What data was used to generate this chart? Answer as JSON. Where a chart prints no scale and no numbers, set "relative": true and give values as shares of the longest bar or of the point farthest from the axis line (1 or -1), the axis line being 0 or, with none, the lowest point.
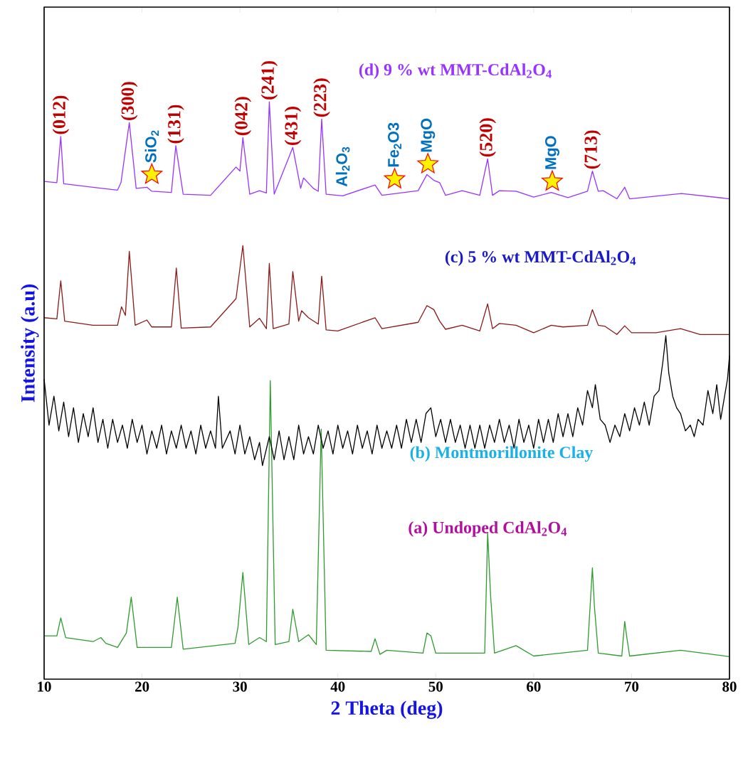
{
  "chart_data": {
    "type": "line",
    "relative": true,
    "xlabel": "2 Theta (deg)",
    "ylabel": "Intensity (a.u)",
    "xlim": [
      10,
      80
    ],
    "xticks": [
      10,
      20,
      30,
      40,
      50,
      60,
      70,
      80
    ],
    "series": [
      {
        "name": "(a) Undoped CdAl$_{2}$O$_{4}$",
        "color": "#2e9b2e",
        "x": [
          10,
          11.3,
          11.7,
          12.2,
          15,
          15.8,
          16.3,
          17.5,
          18.4,
          18.9,
          19.5,
          23,
          23.6,
          24.2,
          29.5,
          29.8,
          30.3,
          30.9,
          32,
          32.7,
          33.1,
          33.6,
          35,
          35.4,
          36,
          37,
          37.8,
          38.3,
          38.8,
          43.4,
          43.8,
          44.3,
          45,
          48.7,
          49.1,
          49.5,
          50,
          55,
          55.3,
          55.6,
          56,
          58.2,
          60,
          65.5,
          66,
          66.2,
          66.6,
          69,
          69.3,
          69.5,
          69.8,
          75,
          80
        ],
        "values": [
          0.075,
          0.075,
          0.106,
          0.072,
          0.065,
          0.072,
          0.062,
          0.055,
          0.08,
          0.142,
          0.055,
          0.055,
          0.142,
          0.052,
          0.062,
          0.09,
          0.185,
          0.06,
          0.072,
          0.065,
          0.517,
          0.06,
          0.065,
          0.121,
          0.065,
          0.077,
          0.06,
          0.433,
          0.05,
          0.048,
          0.07,
          0.043,
          0.05,
          0.045,
          0.08,
          0.075,
          0.045,
          0.045,
          0.254,
          0.145,
          0.045,
          0.058,
          0.04,
          0.05,
          0.193,
          0.127,
          0.045,
          0.04,
          0.1,
          0.074,
          0.04,
          0.05,
          0.039
        ]
      },
      {
        "name": "(b) Montmorillonite Clay",
        "color": "#000000",
        "x": [
          10,
          10.5,
          11,
          11.5,
          12,
          12.5,
          13,
          13.5,
          14,
          14.5,
          15,
          15.5,
          16,
          16.5,
          17,
          17.5,
          18,
          18.5,
          19,
          19.5,
          20,
          20.5,
          21,
          21.5,
          22,
          22.5,
          23,
          23.5,
          24,
          24.5,
          25,
          25.5,
          26,
          26.5,
          27,
          27.5,
          27.8,
          28.2,
          29,
          29.5,
          30,
          30.5,
          31,
          31.5,
          32,
          32.3,
          33,
          33.5,
          34,
          34.5,
          35,
          35.5,
          36,
          36.5,
          37,
          37.5,
          38,
          38.5,
          39,
          39.5,
          40,
          40.5,
          41,
          41.5,
          42,
          42.5,
          43,
          43.5,
          44,
          44.5,
          45,
          45.5,
          46,
          46.5,
          47,
          47.5,
          48,
          48.5,
          49,
          49.5,
          50,
          50.5,
          51,
          51.5,
          52,
          52.5,
          53,
          53.5,
          54,
          54.5,
          55,
          55.5,
          56,
          56.5,
          57,
          57.5,
          58,
          58.5,
          59,
          59.5,
          60,
          60.5,
          61,
          61.5,
          62,
          62.5,
          63,
          63.5,
          64,
          64.5,
          65,
          65.5,
          66,
          66.3,
          66.8,
          67.3,
          67.8,
          68.3,
          68.8,
          69.3,
          69.8,
          70.3,
          70.8,
          71.3,
          71.8,
          72.3,
          72.8,
          73.2,
          73.5,
          73.8,
          74.2,
          74.6,
          75,
          75.5,
          76,
          76.4,
          76.8,
          77.3,
          77.8,
          78.3,
          78.7,
          79.1,
          79.5,
          79.8,
          80
        ],
        "values": [
          0.52,
          0.44,
          0.49,
          0.43,
          0.48,
          0.42,
          0.47,
          0.41,
          0.46,
          0.42,
          0.47,
          0.41,
          0.45,
          0.4,
          0.45,
          0.41,
          0.44,
          0.4,
          0.45,
          0.41,
          0.44,
          0.39,
          0.43,
          0.4,
          0.44,
          0.39,
          0.43,
          0.4,
          0.44,
          0.4,
          0.43,
          0.39,
          0.44,
          0.4,
          0.43,
          0.4,
          0.49,
          0.4,
          0.43,
          0.39,
          0.44,
          0.39,
          0.42,
          0.38,
          0.41,
          0.37,
          0.42,
          0.38,
          0.43,
          0.38,
          0.42,
          0.38,
          0.44,
          0.39,
          0.42,
          0.39,
          0.44,
          0.4,
          0.43,
          0.39,
          0.44,
          0.4,
          0.43,
          0.39,
          0.44,
          0.4,
          0.43,
          0.39,
          0.44,
          0.4,
          0.43,
          0.4,
          0.44,
          0.4,
          0.45,
          0.41,
          0.45,
          0.41,
          0.46,
          0.47,
          0.42,
          0.45,
          0.41,
          0.45,
          0.41,
          0.44,
          0.4,
          0.44,
          0.4,
          0.44,
          0.4,
          0.44,
          0.41,
          0.45,
          0.41,
          0.44,
          0.4,
          0.45,
          0.41,
          0.44,
          0.4,
          0.45,
          0.41,
          0.45,
          0.41,
          0.46,
          0.42,
          0.46,
          0.42,
          0.47,
          0.44,
          0.5,
          0.47,
          0.51,
          0.45,
          0.44,
          0.41,
          0.44,
          0.42,
          0.46,
          0.43,
          0.47,
          0.44,
          0.48,
          0.44,
          0.49,
          0.5,
          0.55,
          0.595,
          0.53,
          0.49,
          0.47,
          0.46,
          0.43,
          0.44,
          0.42,
          0.45,
          0.44,
          0.5,
          0.46,
          0.51,
          0.45,
          0.49,
          0.52,
          0.56
        ]
      },
      {
        "name": "(c) 5 % wt MMT-CdAl$_{2}$O$_{4}$",
        "color": "#8b1a1a",
        "x": [
          10,
          11.3,
          11.7,
          12.1,
          15,
          17.5,
          17.9,
          18.3,
          18.7,
          19.3,
          20.5,
          21,
          23,
          23.5,
          24,
          27,
          29.6,
          30.3,
          31,
          32,
          32.7,
          33,
          33.4,
          35,
          35.4,
          36,
          36.3,
          37,
          38,
          38.35,
          38.8,
          40,
          43.8,
          44.5,
          48.2,
          49.1,
          49.8,
          50.4,
          51,
          52.7,
          54.5,
          55.3,
          55.8,
          56.5,
          58.2,
          60,
          61.8,
          63,
          65.5,
          66,
          66.6,
          67.3,
          68.5,
          69.3,
          70,
          72.5,
          75,
          77,
          80
        ],
        "values": [
          0.626,
          0.624,
          0.69,
          0.62,
          0.613,
          0.613,
          0.645,
          0.63,
          0.741,
          0.613,
          0.622,
          0.61,
          0.61,
          0.712,
          0.608,
          0.61,
          0.659,
          0.751,
          0.61,
          0.625,
          0.607,
          0.72,
          0.607,
          0.615,
          0.706,
          0.62,
          0.638,
          0.626,
          0.615,
          0.698,
          0.605,
          0.603,
          0.626,
          0.607,
          0.618,
          0.647,
          0.64,
          0.62,
          0.606,
          0.613,
          0.603,
          0.65,
          0.607,
          0.616,
          0.613,
          0.6,
          0.613,
          0.61,
          0.613,
          0.64,
          0.613,
          0.611,
          0.597,
          0.612,
          0.6,
          0.6,
          0.607,
          0.597,
          0.597
        ]
      },
      {
        "name": "(d) 9 % wt MMT-CdAl$_{2}$O$_{4}$",
        "color": "#9933ff",
        "x": [
          10,
          11.3,
          11.7,
          12,
          15,
          17.5,
          17.85,
          18.7,
          19.4,
          20.5,
          21,
          23,
          23.45,
          24.2,
          27,
          29.6,
          30,
          30.3,
          31,
          32,
          32.7,
          33,
          33.5,
          35.4,
          36.2,
          36.5,
          37.5,
          38,
          38.35,
          38.8,
          40.5,
          43.8,
          44.5,
          48.2,
          49.1,
          49.8,
          50.4,
          51,
          52.7,
          54.5,
          55.3,
          55.8,
          56.5,
          58.2,
          60,
          61.8,
          63.5,
          65.5,
          66,
          66.6,
          67.1,
          68.5,
          69.3,
          69.8,
          75.1,
          80
        ],
        "values": [
          0.862,
          0.86,
          0.94,
          0.858,
          0.852,
          0.847,
          0.86,
          0.964,
          0.85,
          0.852,
          0.845,
          0.843,
          0.924,
          0.84,
          0.838,
          0.887,
          0.88,
          0.938,
          0.84,
          0.846,
          0.842,
          1.0,
          0.84,
          0.921,
          0.85,
          0.868,
          0.85,
          0.845,
          0.97,
          0.84,
          0.837,
          0.856,
          0.838,
          0.846,
          0.874,
          0.864,
          0.86,
          0.838,
          0.846,
          0.838,
          0.901,
          0.838,
          0.846,
          0.845,
          0.835,
          0.843,
          0.834,
          0.845,
          0.88,
          0.845,
          0.846,
          0.832,
          0.852,
          0.832,
          0.841,
          0.832
        ]
      }
    ],
    "annotations": [
      {
        "text": "(012)",
        "x": 11.7,
        "y": 0.94
      },
      {
        "text": "(300)",
        "x": 18.7,
        "y": 0.964
      },
      {
        "text": "(131)",
        "x": 23.45,
        "y": 0.924
      },
      {
        "text": "(042)",
        "x": 30.3,
        "y": 0.938
      },
      {
        "text": "(241)",
        "x": 33,
        "y": 1.0
      },
      {
        "text": "(431)",
        "x": 35.4,
        "y": 0.921
      },
      {
        "text": "(223)",
        "x": 38.35,
        "y": 0.97
      },
      {
        "text": "(520)",
        "x": 55.3,
        "y": 0.901
      },
      {
        "text": "(713)",
        "x": 66,
        "y": 0.88
      },
      {
        "text": "SiO$_{2}$",
        "x": 21,
        "y": 0.874
      },
      "Al$_{2}$O$_{3}$",
      {
        "text": "Fe$_{2}$O3",
        "x": 45.8,
        "y": 0.866
      },
      {
        "text": "MgO",
        "x": 49.2,
        "y": 0.892
      },
      {
        "text": "MgO",
        "x": 61.9,
        "y": 0.862
      }
    ]
  }
}
